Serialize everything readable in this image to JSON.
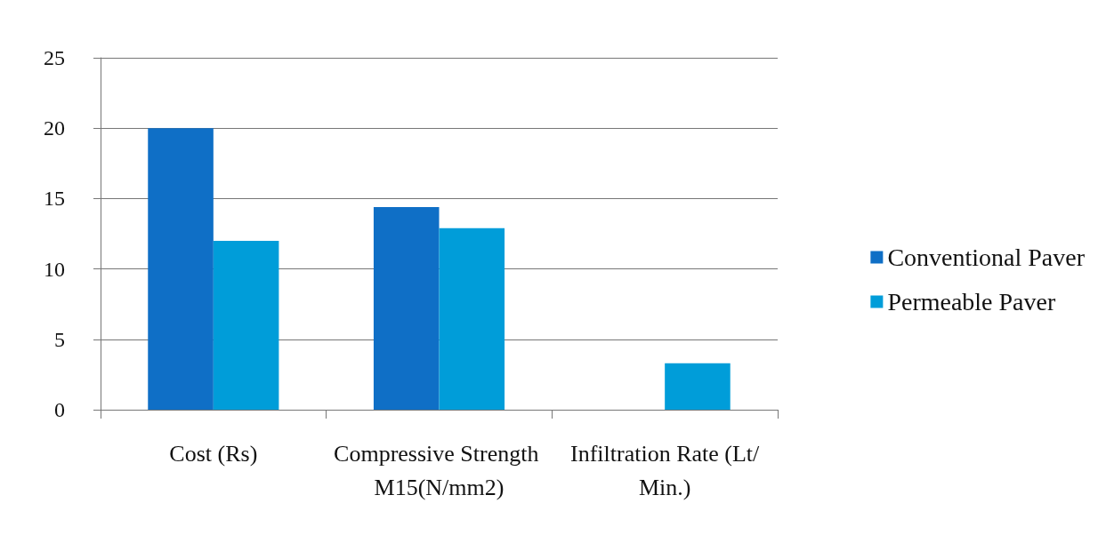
{
  "chart_data": {
    "type": "bar",
    "categories": [
      "Cost (Rs)",
      "Compressive Strength M15(N/mm2)",
      "Infiltration Rate (Lt/Min.)"
    ],
    "series": [
      {
        "name": "Conventional Paver",
        "color": "#0f6fc6",
        "values": [
          20,
          14.4,
          null
        ]
      },
      {
        "name": "Permeable Paver",
        "color": "#009dd9",
        "values": [
          12,
          12.9,
          3.3
        ]
      }
    ],
    "ylim": [
      0,
      25
    ],
    "yticks": [
      0,
      5,
      10,
      15,
      20,
      25
    ],
    "grid": "y",
    "legend": "right"
  }
}
